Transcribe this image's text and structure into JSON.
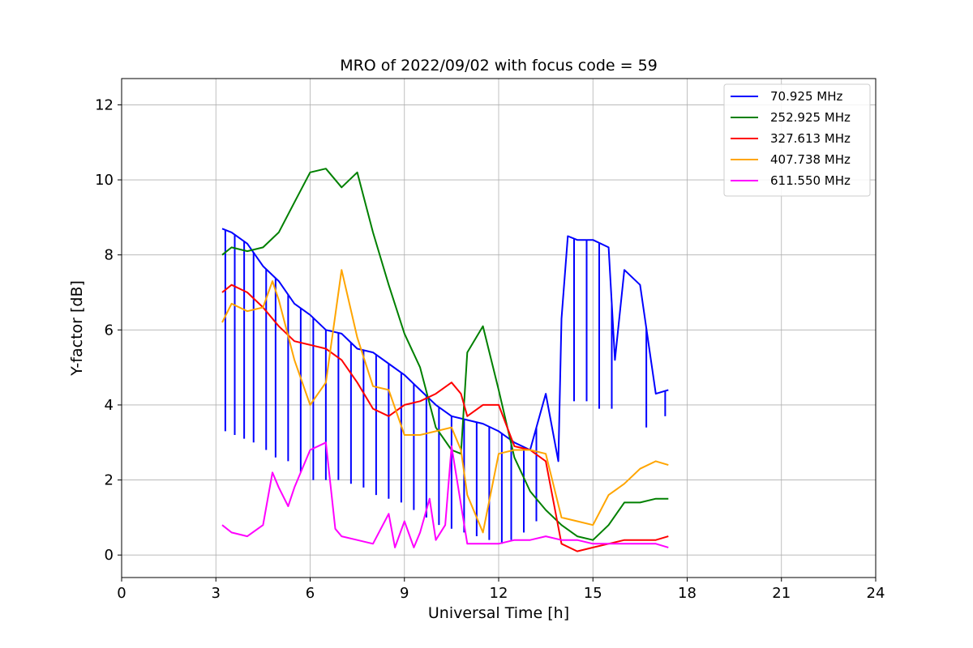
{
  "chart_data": {
    "type": "line",
    "title": "MRO of 2022/09/02 with focus code = 59",
    "xlabel": "Universal Time [h]",
    "ylabel": "Y-factor [dB]",
    "xlim": [
      0,
      24
    ],
    "ylim": [
      -0.6,
      12.7
    ],
    "xticks": [
      0,
      3,
      6,
      9,
      12,
      15,
      18,
      21,
      24
    ],
    "yticks": [
      0,
      2,
      4,
      6,
      8,
      10,
      12
    ],
    "grid": true,
    "legend_position": "top-right",
    "series": [
      {
        "name": "70.925 MHz",
        "color": "#0000ff",
        "x": [
          3.2,
          3.5,
          4.0,
          4.5,
          5.0,
          5.5,
          6.0,
          6.5,
          7.0,
          7.5,
          8.0,
          8.5,
          9.0,
          9.5,
          10.0,
          10.5,
          11.0,
          11.5,
          12.0,
          12.5,
          13.0,
          13.5,
          13.9,
          14.0,
          14.2,
          14.5,
          15.0,
          15.5,
          15.7,
          16.0,
          16.5,
          17.0,
          17.4
        ],
        "y": [
          8.7,
          8.6,
          8.3,
          7.7,
          7.3,
          6.7,
          6.4,
          6.0,
          5.9,
          5.5,
          5.4,
          5.1,
          4.8,
          4.4,
          4.0,
          3.7,
          3.6,
          3.5,
          3.3,
          3.0,
          2.8,
          4.3,
          2.5,
          6.3,
          8.5,
          8.4,
          8.4,
          8.2,
          5.2,
          7.6,
          7.2,
          4.3,
          4.4
        ],
        "dips": [
          {
            "x": 3.3,
            "y": 3.3
          },
          {
            "x": 3.6,
            "y": 3.2
          },
          {
            "x": 3.9,
            "y": 3.1
          },
          {
            "x": 4.2,
            "y": 3.0
          },
          {
            "x": 4.6,
            "y": 2.8
          },
          {
            "x": 4.9,
            "y": 2.6
          },
          {
            "x": 5.3,
            "y": 2.5
          },
          {
            "x": 5.7,
            "y": 2.2
          },
          {
            "x": 6.1,
            "y": 2.0
          },
          {
            "x": 6.5,
            "y": 2.0
          },
          {
            "x": 6.9,
            "y": 2.0
          },
          {
            "x": 7.3,
            "y": 1.9
          },
          {
            "x": 7.7,
            "y": 1.8
          },
          {
            "x": 8.1,
            "y": 1.6
          },
          {
            "x": 8.5,
            "y": 1.5
          },
          {
            "x": 8.9,
            "y": 1.4
          },
          {
            "x": 9.3,
            "y": 1.2
          },
          {
            "x": 9.7,
            "y": 1.0
          },
          {
            "x": 10.1,
            "y": 0.8
          },
          {
            "x": 10.5,
            "y": 0.7
          },
          {
            "x": 10.9,
            "y": 0.6
          },
          {
            "x": 11.3,
            "y": 0.5
          },
          {
            "x": 11.7,
            "y": 0.4
          },
          {
            "x": 12.1,
            "y": 0.3
          },
          {
            "x": 12.4,
            "y": 0.4
          },
          {
            "x": 12.8,
            "y": 0.6
          },
          {
            "x": 13.2,
            "y": 0.9
          },
          {
            "x": 14.4,
            "y": 4.1
          },
          {
            "x": 14.8,
            "y": 4.1
          },
          {
            "x": 15.2,
            "y": 3.9
          },
          {
            "x": 15.6,
            "y": 3.9
          },
          {
            "x": 16.7,
            "y": 3.4
          },
          {
            "x": 17.3,
            "y": 3.7
          }
        ]
      },
      {
        "name": "252.925 MHz",
        "color": "#008000",
        "x": [
          3.2,
          3.5,
          4.0,
          4.5,
          5.0,
          5.5,
          6.0,
          6.5,
          7.0,
          7.5,
          8.0,
          8.5,
          9.0,
          9.5,
          10.0,
          10.5,
          10.8,
          11.0,
          11.5,
          12.0,
          12.5,
          13.0,
          13.5,
          14.0,
          14.5,
          15.0,
          15.5,
          16.0,
          16.5,
          17.0,
          17.4
        ],
        "y": [
          8.0,
          8.2,
          8.1,
          8.2,
          8.6,
          9.4,
          10.2,
          10.3,
          9.8,
          10.2,
          8.6,
          7.2,
          5.9,
          5.0,
          3.4,
          2.8,
          2.7,
          5.4,
          6.1,
          4.4,
          2.6,
          1.7,
          1.2,
          0.8,
          0.5,
          0.4,
          0.8,
          1.4,
          1.4,
          1.5,
          1.5
        ]
      },
      {
        "name": "327.613 MHz",
        "color": "#ff0000",
        "x": [
          3.2,
          3.5,
          4.0,
          4.5,
          5.0,
          5.5,
          6.0,
          6.5,
          7.0,
          7.5,
          8.0,
          8.5,
          9.0,
          9.5,
          10.0,
          10.5,
          10.8,
          11.0,
          11.5,
          12.0,
          12.5,
          13.0,
          13.5,
          14.0,
          14.5,
          15.0,
          15.5,
          16.0,
          16.5,
          17.0,
          17.4
        ],
        "y": [
          7.0,
          7.2,
          7.0,
          6.6,
          6.1,
          5.7,
          5.6,
          5.5,
          5.2,
          4.6,
          3.9,
          3.7,
          4.0,
          4.1,
          4.3,
          4.6,
          4.3,
          3.7,
          4.0,
          4.0,
          2.9,
          2.8,
          2.5,
          0.3,
          0.1,
          0.2,
          0.3,
          0.4,
          0.4,
          0.4,
          0.5
        ]
      },
      {
        "name": "407.738 MHz",
        "color": "#ffa500",
        "x": [
          3.2,
          3.5,
          4.0,
          4.5,
          4.8,
          5.0,
          5.5,
          6.0,
          6.5,
          7.0,
          7.5,
          8.0,
          8.5,
          9.0,
          9.5,
          10.0,
          10.5,
          10.8,
          11.0,
          11.5,
          12.0,
          12.5,
          13.0,
          13.5,
          14.0,
          14.5,
          15.0,
          15.5,
          16.0,
          16.5,
          17.0,
          17.4
        ],
        "y": [
          6.2,
          6.7,
          6.5,
          6.6,
          7.3,
          6.8,
          5.2,
          4.0,
          4.6,
          7.6,
          5.8,
          4.5,
          4.4,
          3.2,
          3.2,
          3.3,
          3.4,
          2.8,
          1.6,
          0.6,
          2.7,
          2.8,
          2.8,
          2.7,
          1.0,
          0.9,
          0.8,
          1.6,
          1.9,
          2.3,
          2.5,
          2.4
        ]
      },
      {
        "name": "611.550 MHz",
        "color": "#ff00ff",
        "x": [
          3.2,
          3.5,
          4.0,
          4.5,
          4.8,
          5.0,
          5.3,
          5.5,
          6.0,
          6.5,
          6.8,
          7.0,
          7.5,
          8.0,
          8.5,
          8.7,
          9.0,
          9.3,
          9.5,
          9.8,
          10.0,
          10.3,
          10.5,
          11.0,
          11.5,
          12.0,
          12.5,
          13.0,
          13.5,
          14.0,
          14.5,
          15.0,
          15.5,
          16.0,
          16.5,
          17.0,
          17.4
        ],
        "y": [
          0.8,
          0.6,
          0.5,
          0.8,
          2.2,
          1.8,
          1.3,
          1.8,
          2.8,
          3.0,
          0.7,
          0.5,
          0.4,
          0.3,
          1.1,
          0.2,
          0.9,
          0.2,
          0.6,
          1.5,
          0.4,
          0.8,
          2.9,
          0.3,
          0.3,
          0.3,
          0.4,
          0.4,
          0.5,
          0.4,
          0.4,
          0.3,
          0.3,
          0.3,
          0.3,
          0.3,
          0.2
        ]
      }
    ]
  }
}
